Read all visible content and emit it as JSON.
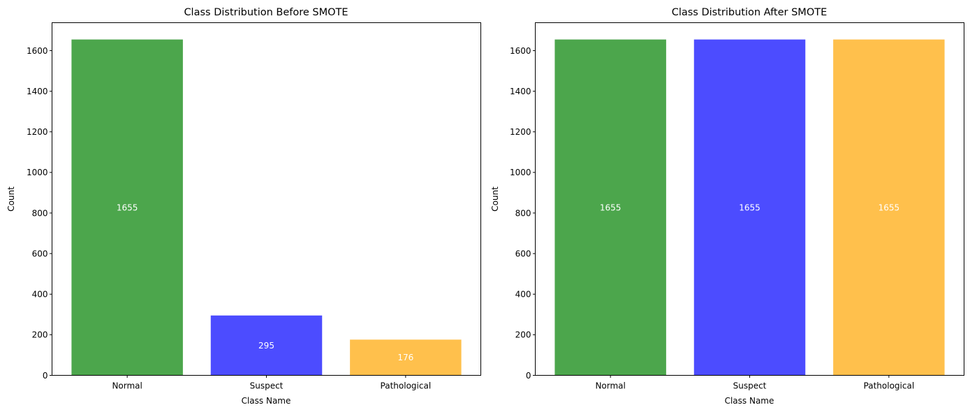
{
  "chart_data": [
    {
      "type": "bar",
      "title": "Class Distribution Before SMOTE",
      "xlabel": "Class Name",
      "ylabel": "Count",
      "categories": [
        "Normal",
        "Suspect",
        "Pathological"
      ],
      "values": [
        1655,
        295,
        176
      ],
      "value_labels": [
        "1655",
        "295",
        "176"
      ],
      "colors": [
        "#4ca64c",
        "#4c4cff",
        "#ffc04c"
      ],
      "ylim": [
        0,
        1737.75
      ],
      "yticks": [
        0,
        200,
        400,
        600,
        800,
        1000,
        1200,
        1400,
        1600
      ],
      "grid": false,
      "legend": "none"
    },
    {
      "type": "bar",
      "title": "Class Distribution After SMOTE",
      "xlabel": "Class Name",
      "ylabel": "Count",
      "categories": [
        "Normal",
        "Suspect",
        "Pathological"
      ],
      "values": [
        1655,
        1655,
        1655
      ],
      "value_labels": [
        "1655",
        "1655",
        "1655"
      ],
      "colors": [
        "#4ca64c",
        "#4c4cff",
        "#ffc04c"
      ],
      "ylim": [
        0,
        1737.75
      ],
      "yticks": [
        0,
        200,
        400,
        600,
        800,
        1000,
        1200,
        1400,
        1600
      ],
      "grid": false,
      "legend": "none"
    }
  ]
}
